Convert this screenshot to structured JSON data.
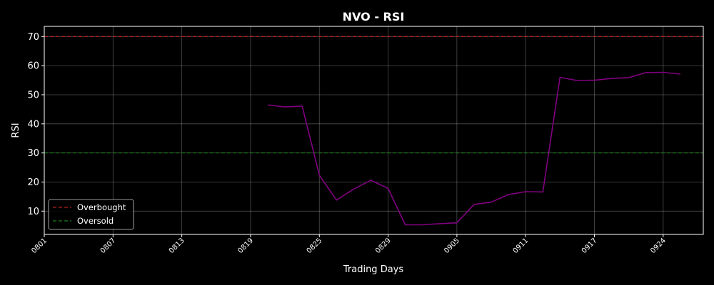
{
  "chart_data": {
    "type": "line",
    "title": "NVO - RSI",
    "xlabel": "Trading Days",
    "ylabel": "RSI",
    "x_ticks": [
      "0801",
      "0807",
      "0813",
      "0819",
      "0825",
      "0829",
      "0905",
      "0911",
      "0917",
      "0924"
    ],
    "x_tick_indices": [
      0,
      6,
      12,
      18,
      24,
      30,
      36,
      42,
      48,
      54
    ],
    "x_index_range": [
      0,
      57.5
    ],
    "ylim": [
      2,
      73.5
    ],
    "y_ticks": [
      10,
      20,
      30,
      40,
      50,
      60,
      70
    ],
    "grid": true,
    "legend": {
      "placement": "lower-left",
      "entries": [
        {
          "label": "Overbought",
          "color": "#b22222",
          "style": "dashed"
        },
        {
          "label": "Oversold",
          "color": "#1e7d1e",
          "style": "dashed"
        }
      ]
    },
    "reference_lines": [
      {
        "name": "Overbought",
        "value": 70,
        "color": "#b22222"
      },
      {
        "name": "Oversold",
        "value": 30,
        "color": "#1e7d1e"
      }
    ],
    "series": [
      {
        "color": "#800080",
        "points": [
          [
            19.5,
            46.5
          ],
          [
            21,
            45.8
          ],
          [
            22.5,
            46.1
          ],
          [
            24,
            22.3
          ],
          [
            25.5,
            13.8
          ],
          [
            27,
            17.6
          ],
          [
            28.5,
            20.6
          ],
          [
            30,
            17.8
          ],
          [
            31.5,
            5.3
          ],
          [
            33,
            5.3
          ],
          [
            34.5,
            5.7
          ],
          [
            36,
            6.0
          ],
          [
            37.5,
            12.3
          ],
          [
            39,
            13.1
          ],
          [
            40.5,
            15.7
          ],
          [
            42,
            16.7
          ],
          [
            43.5,
            16.6
          ],
          [
            45,
            56.0
          ],
          [
            46.5,
            54.9
          ],
          [
            48,
            55.0
          ],
          [
            49.5,
            55.6
          ],
          [
            51,
            55.9
          ],
          [
            52.5,
            57.6
          ],
          [
            54,
            57.7
          ],
          [
            55.5,
            57.1
          ]
        ]
      }
    ]
  }
}
